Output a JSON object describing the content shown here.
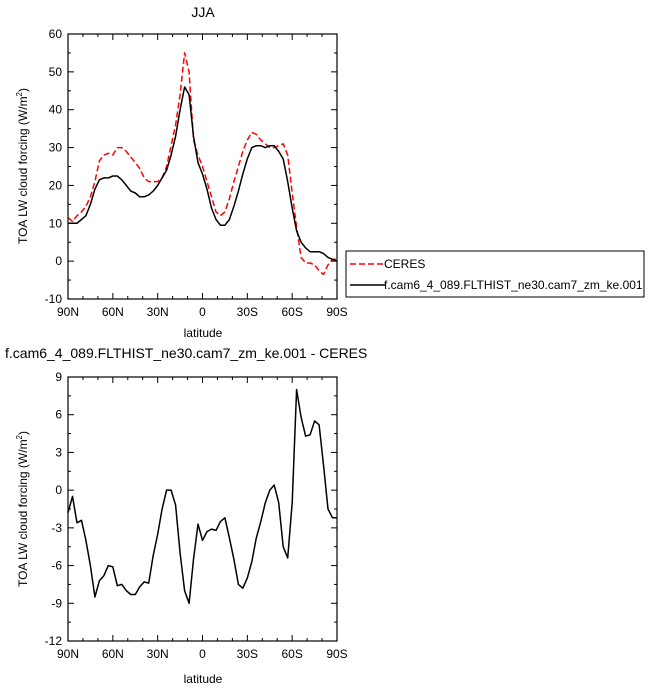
{
  "chart_data": [
    {
      "type": "line",
      "title": "JJA",
      "xlabel": "latitude",
      "ylabel": "TOA LW cloud forcing (W/m",
      "ylabel_sup": "2",
      "ylabel_end": ")",
      "xlim": [
        90,
        -90
      ],
      "ylim": [
        -10,
        60
      ],
      "xticks": [
        90,
        60,
        30,
        0,
        -30,
        -60,
        -90
      ],
      "xtick_labels": [
        "90N",
        "60N",
        "30N",
        "0",
        "30S",
        "60S",
        "90S"
      ],
      "yticks": [
        -10,
        0,
        10,
        20,
        30,
        40,
        50,
        60
      ],
      "ytick_labels": [
        "-10",
        "0",
        "10",
        "20",
        "30",
        "40",
        "50",
        "60"
      ],
      "legend_placement": "right",
      "series": [
        {
          "name": "CERES",
          "color": "#ff0000",
          "style": "dashed",
          "x": [
            90,
            87,
            84,
            81,
            78,
            75,
            72,
            69,
            66,
            63,
            60,
            57,
            54,
            51,
            48,
            45,
            42,
            39,
            36,
            33,
            30,
            27,
            24,
            21,
            18,
            15,
            12,
            9,
            6,
            3,
            0,
            -3,
            -6,
            -9,
            -12,
            -15,
            -18,
            -21,
            -24,
            -27,
            -30,
            -33,
            -36,
            -39,
            -42,
            -45,
            -48,
            -51,
            -54,
            -57,
            -60,
            -63,
            -66,
            -69,
            -72,
            -75,
            -78,
            -81,
            -84,
            -87,
            -90
          ],
          "y": [
            11.5,
            10.5,
            12,
            13,
            14.5,
            17,
            21,
            26.5,
            28,
            28.5,
            28,
            30,
            30,
            29,
            27.5,
            26,
            24.5,
            22,
            21,
            21,
            21,
            22,
            25,
            30.5,
            36,
            44,
            55,
            50,
            32,
            28,
            25,
            21,
            17,
            13,
            12,
            13,
            16.5,
            21,
            25,
            29,
            32,
            34,
            33.5,
            32,
            31,
            30,
            30,
            30.5,
            31,
            28,
            18,
            9,
            1,
            -0.5,
            -0.5,
            -1,
            -2.5,
            -3.5,
            -1,
            0.5,
            0.5
          ]
        },
        {
          "name": "f.cam6_4_089.FLTHIST_ne30.cam7_zm_ke.001",
          "color": "#000000",
          "style": "solid",
          "x": [
            90,
            87,
            84,
            81,
            78,
            75,
            72,
            69,
            66,
            63,
            60,
            57,
            54,
            51,
            48,
            45,
            42,
            39,
            36,
            33,
            30,
            27,
            24,
            21,
            18,
            15,
            12,
            9,
            6,
            3,
            0,
            -3,
            -6,
            -9,
            -12,
            -15,
            -18,
            -21,
            -24,
            -27,
            -30,
            -33,
            -36,
            -39,
            -42,
            -45,
            -48,
            -51,
            -54,
            -57,
            -60,
            -63,
            -66,
            -69,
            -72,
            -75,
            -78,
            -81,
            -84,
            -87,
            -90
          ],
          "y": [
            10,
            10,
            10,
            11,
            12,
            15,
            19,
            21.5,
            22,
            22,
            22.5,
            22.5,
            21.5,
            20,
            18.5,
            18,
            17,
            17,
            17.5,
            18.5,
            20,
            22,
            24,
            28,
            33,
            40,
            46,
            44,
            33,
            26,
            23,
            19,
            14,
            11,
            9.5,
            9.5,
            11,
            14.5,
            18.5,
            23,
            27,
            30,
            30.5,
            30.5,
            30,
            30.5,
            30.5,
            29,
            27,
            21,
            14,
            8,
            5,
            3.5,
            2.5,
            2.5,
            2.5,
            2,
            1,
            0.5,
            0
          ]
        }
      ]
    },
    {
      "type": "line",
      "title": "f.cam6_4_089.FLTHIST_ne30.cam7_zm_ke.001 - CERES",
      "xlabel": "latitude",
      "ylabel": "TOA LW cloud forcing (W/m",
      "ylabel_sup": "2",
      "ylabel_end": ")",
      "xlim": [
        90,
        -90
      ],
      "ylim": [
        -12,
        9
      ],
      "xticks": [
        90,
        60,
        30,
        0,
        -30,
        -60,
        -90
      ],
      "xtick_labels": [
        "90N",
        "60N",
        "30N",
        "0",
        "30S",
        "60S",
        "90S"
      ],
      "yticks": [
        -12,
        -9,
        -6,
        -3,
        0,
        3,
        6,
        9
      ],
      "ytick_labels": [
        "-12",
        "-9",
        "-6",
        "-3",
        "0",
        "3",
        "6",
        "9"
      ],
      "series": [
        {
          "color": "#000000",
          "style": "solid",
          "x": [
            90,
            87,
            84,
            81,
            78,
            75,
            72,
            69,
            66,
            63,
            60,
            57,
            54,
            51,
            48,
            45,
            42,
            39,
            36,
            33,
            30,
            27,
            24,
            21,
            18,
            15,
            12,
            9,
            6,
            3,
            0,
            -3,
            -6,
            -9,
            -12,
            -15,
            -18,
            -21,
            -24,
            -27,
            -30,
            -33,
            -36,
            -39,
            -42,
            -45,
            -48,
            -51,
            -54,
            -57,
            -60,
            -63,
            -66,
            -69,
            -72,
            -75,
            -78,
            -81,
            -84,
            -87,
            -90
          ],
          "y": [
            -1.8,
            -0.5,
            -2.6,
            -2.4,
            -4,
            -6,
            -8.5,
            -7.2,
            -6.8,
            -6,
            -6.1,
            -7.6,
            -7.5,
            -8,
            -8.3,
            -8.3,
            -7.7,
            -7.3,
            -7.4,
            -5.2,
            -3.5,
            -1.5,
            0,
            0,
            -1.2,
            -5,
            -8,
            -9,
            -5.5,
            -2.7,
            -4,
            -3.3,
            -3.1,
            -3.2,
            -2.5,
            -2.2,
            -3.8,
            -5.5,
            -7.5,
            -7.8,
            -7,
            -5.7,
            -3.8,
            -2.5,
            -1,
            0,
            0.4,
            -1,
            -4.5,
            -5.4,
            -1,
            8,
            5.8,
            4.3,
            4.4,
            5.5,
            5.2,
            2,
            -1.5,
            -2.2,
            -2.2
          ]
        }
      ]
    }
  ]
}
